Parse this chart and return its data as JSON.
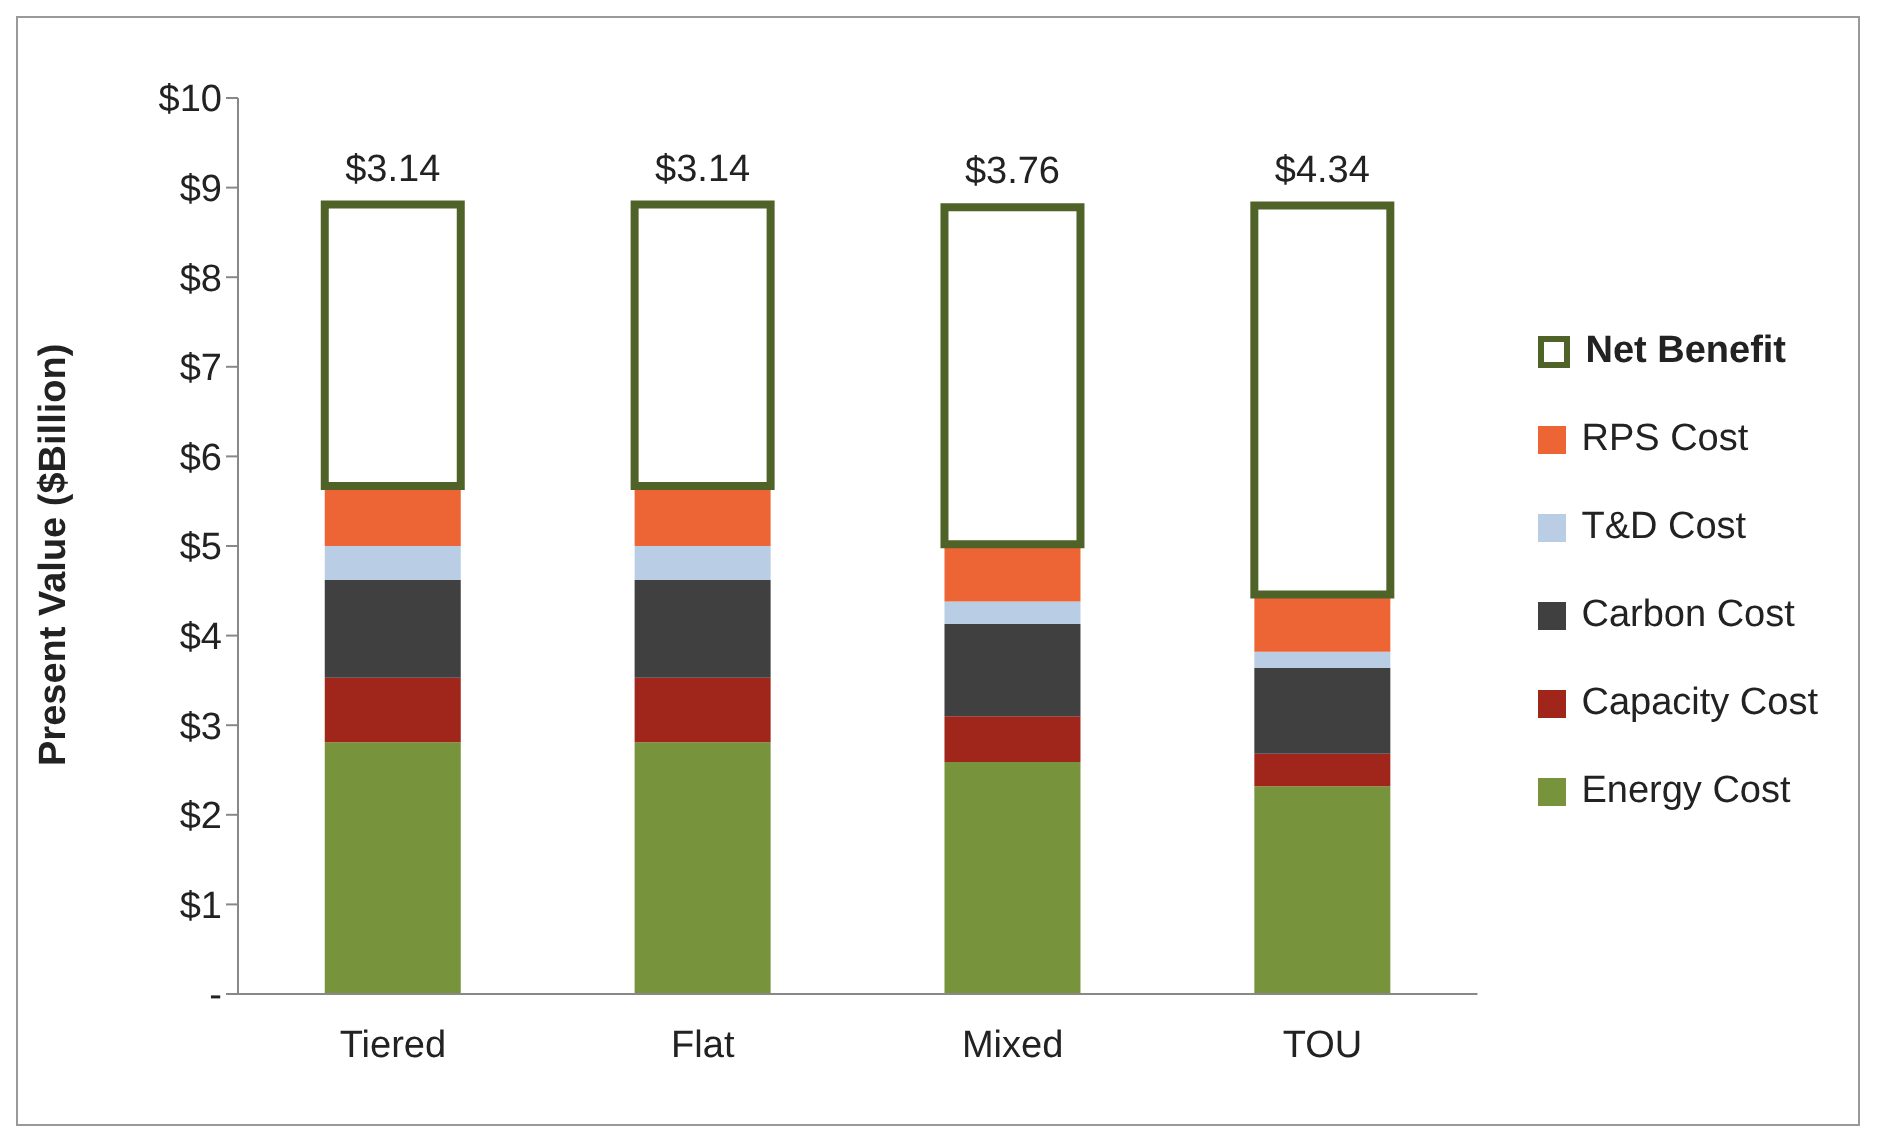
{
  "chart_data": {
    "type": "bar",
    "stacked": true,
    "ylabel": "Present Value ($Billion)",
    "categories": [
      "Tiered",
      "Flat",
      "Mixed",
      "TOU"
    ],
    "ylim": [
      0,
      10
    ],
    "yticks": [
      {
        "value": 0,
        "label": "-"
      },
      {
        "value": 1,
        "label": "$1"
      },
      {
        "value": 2,
        "label": "$2"
      },
      {
        "value": 3,
        "label": "$3"
      },
      {
        "value": 4,
        "label": "$4"
      },
      {
        "value": 5,
        "label": "$5"
      },
      {
        "value": 6,
        "label": "$6"
      },
      {
        "value": 7,
        "label": "$7"
      },
      {
        "value": 8,
        "label": "$8"
      },
      {
        "value": 9,
        "label": "$9"
      },
      {
        "value": 10,
        "label": "$10"
      }
    ],
    "grid": false,
    "legend": "right",
    "series": [
      {
        "name": "Energy Cost",
        "color": "#77933c",
        "values": [
          2.81,
          2.81,
          2.59,
          2.32
        ]
      },
      {
        "name": "Capacity Cost",
        "color": "#a0251b",
        "values": [
          0.72,
          0.72,
          0.51,
          0.36
        ]
      },
      {
        "name": "Carbon Cost",
        "color": "#404040",
        "values": [
          1.09,
          1.09,
          1.03,
          0.96
        ]
      },
      {
        "name": "T&D Cost",
        "color": "#b9cde5",
        "values": [
          0.38,
          0.38,
          0.25,
          0.18
        ]
      },
      {
        "name": "RPS Cost",
        "color": "#ee6535",
        "values": [
          0.67,
          0.67,
          0.64,
          0.64
        ]
      },
      {
        "name": "Net Benefit",
        "color": "#4f6228",
        "values": [
          3.14,
          3.14,
          3.76,
          4.34
        ],
        "value_labels": [
          "$3.14",
          "$3.14",
          "$3.76",
          "$4.34"
        ]
      }
    ]
  }
}
